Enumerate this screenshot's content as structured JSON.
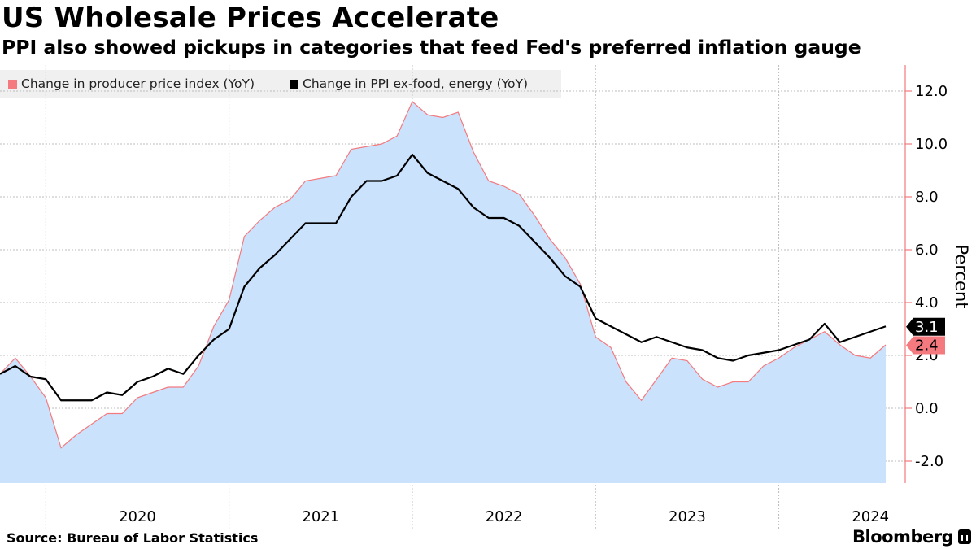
{
  "title": "US Wholesale Prices Accelerate",
  "subtitle": "PPI also showed pickups in categories that feed Fed's preferred inflation gauge",
  "source": "Source: Bureau of Labor Statistics",
  "brand": "Bloomberg",
  "chart_data": {
    "type": "area",
    "ylabel": "Percent",
    "ylim": [
      -2.8,
      13.0
    ],
    "yticks": [
      12.0,
      10.0,
      8.0,
      6.0,
      4.0,
      2.0,
      0.0,
      -2.0
    ],
    "ytick_labels": [
      "12.0",
      "10.0",
      "8.0",
      "6.0",
      "4.0",
      "2.0",
      "0.0",
      "-2.0"
    ],
    "xticks": [
      "2020",
      "2021",
      "2022",
      "2023",
      "2024"
    ],
    "grid": true,
    "legend_position": "top-left",
    "start": "2019-10",
    "series": [
      {
        "name": "Change in producer price index (YoY)",
        "style": "area",
        "color": "#f47a7f",
        "fill": "#cbe2fc",
        "end_label": "2.4",
        "values": [
          1.3,
          1.9,
          1.2,
          0.4,
          -1.5,
          -1.0,
          -0.6,
          -0.2,
          -0.2,
          0.4,
          0.6,
          0.8,
          0.8,
          1.6,
          3.1,
          4.1,
          6.5,
          7.1,
          7.6,
          7.9,
          8.6,
          8.7,
          8.8,
          9.8,
          9.9,
          10.0,
          10.3,
          11.6,
          11.1,
          11.0,
          11.2,
          9.7,
          8.6,
          8.4,
          8.1,
          7.3,
          6.4,
          5.7,
          4.7,
          2.7,
          2.3,
          1.0,
          0.3,
          1.1,
          1.9,
          1.8,
          1.1,
          0.8,
          1.0,
          1.0,
          1.6,
          1.9,
          2.3,
          2.6,
          2.9,
          2.4,
          2.0,
          1.9,
          2.4
        ]
      },
      {
        "name": "Change in PPI ex-food, energy (YoY)",
        "style": "line",
        "color": "#000000",
        "end_label": "3.1",
        "values": [
          1.3,
          1.6,
          1.2,
          1.1,
          0.3,
          0.3,
          0.3,
          0.6,
          0.5,
          1.0,
          1.2,
          1.5,
          1.3,
          2.0,
          2.6,
          3.0,
          4.6,
          5.3,
          5.8,
          6.4,
          7.0,
          7.0,
          7.0,
          8.0,
          8.6,
          8.6,
          8.8,
          9.6,
          8.9,
          8.6,
          8.3,
          7.6,
          7.2,
          7.2,
          6.9,
          6.3,
          5.7,
          5.0,
          4.6,
          3.4,
          3.1,
          2.8,
          2.5,
          2.7,
          2.5,
          2.3,
          2.2,
          1.9,
          1.8,
          2.0,
          2.1,
          2.2,
          2.4,
          2.6,
          3.2,
          2.5,
          2.7,
          2.9,
          3.1
        ]
      }
    ]
  }
}
